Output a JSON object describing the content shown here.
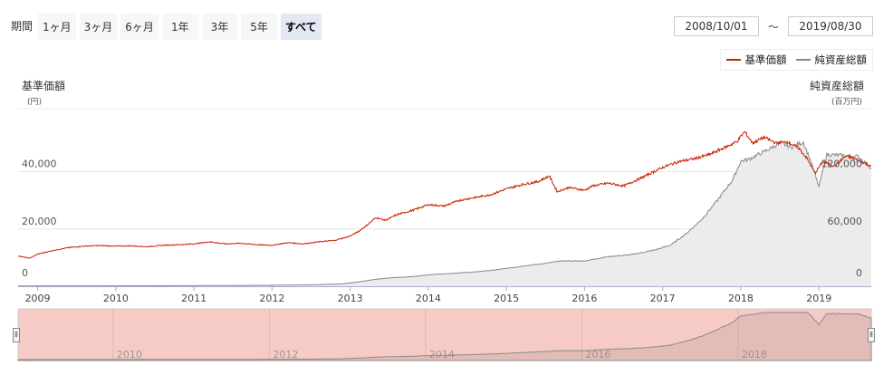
{
  "period": {
    "label": "期間",
    "buttons": [
      "1ヶ月",
      "3ヶ月",
      "6ヶ月",
      "1年",
      "3年",
      "5年",
      "すべて"
    ],
    "active_index": 6
  },
  "date_range": {
    "from": "2008/10/01",
    "separator": "～",
    "to": "2019/08/30"
  },
  "colors": {
    "nav_line": "#cc2200",
    "assets_line": "#888888",
    "assets_fill": "#ececec",
    "navigator_fill": "#f6cbc5"
  },
  "axes": {
    "left_title": "基準価額",
    "left_unit": "(円)",
    "right_title": "純資産総額",
    "right_unit": "(百万円)"
  },
  "chart_data": {
    "type": "line",
    "x_ticks": [
      "2009",
      "2010",
      "2011",
      "2012",
      "2013",
      "2014",
      "2015",
      "2016",
      "2017",
      "2018",
      "2019"
    ],
    "x_range": [
      2008.75,
      2019.67
    ],
    "y_left_ticks": [
      "0",
      "20,000",
      "40,000"
    ],
    "y_left_range": [
      0,
      62000
    ],
    "y_right_ticks": [
      "0",
      "60,000",
      "120,000"
    ],
    "y_right_range": [
      0,
      186000
    ],
    "grid": true,
    "legend": "top-right",
    "series": [
      {
        "name": "基準価額",
        "axis": "left",
        "x": [
          2008.75,
          2008.9,
          2009.0,
          2009.2,
          2009.4,
          2009.6,
          2009.8,
          2010.0,
          2010.2,
          2010.4,
          2010.6,
          2010.8,
          2011.0,
          2011.2,
          2011.4,
          2011.6,
          2011.8,
          2012.0,
          2012.2,
          2012.4,
          2012.6,
          2012.8,
          2013.0,
          2013.1,
          2013.2,
          2013.33,
          2013.45,
          2013.6,
          2013.8,
          2014.0,
          2014.2,
          2014.4,
          2014.6,
          2014.8,
          2015.0,
          2015.2,
          2015.4,
          2015.55,
          2015.65,
          2015.8,
          2016.0,
          2016.1,
          2016.3,
          2016.5,
          2016.7,
          2016.85,
          2017.0,
          2017.2,
          2017.4,
          2017.6,
          2017.8,
          2017.95,
          2018.05,
          2018.15,
          2018.3,
          2018.45,
          2018.6,
          2018.75,
          2018.85,
          2018.95,
          2019.05,
          2019.2,
          2019.35,
          2019.5,
          2019.67
        ],
        "values": [
          10500,
          9800,
          11200,
          12500,
          13500,
          14000,
          14200,
          14000,
          14100,
          13800,
          14300,
          14500,
          14800,
          15500,
          14800,
          15000,
          14500,
          14300,
          15200,
          14800,
          15500,
          16000,
          17500,
          19000,
          21000,
          24000,
          23000,
          25000,
          26500,
          28500,
          28000,
          30000,
          31000,
          32000,
          34000,
          35500,
          36500,
          38500,
          33000,
          34500,
          33500,
          35000,
          36000,
          35000,
          37500,
          39500,
          41500,
          43500,
          44500,
          46000,
          48500,
          50500,
          54000,
          50000,
          52000,
          50000,
          50500,
          48000,
          44500,
          39500,
          43500,
          42000,
          45500,
          44000,
          42000
        ]
      },
      {
        "name": "純資産総額",
        "axis": "right",
        "x": [
          2008.75,
          2009.0,
          2009.5,
          2010.0,
          2010.5,
          2011.0,
          2011.5,
          2012.0,
          2012.5,
          2012.9,
          2013.1,
          2013.35,
          2013.55,
          2013.8,
          2014.0,
          2014.3,
          2014.6,
          2014.9,
          2015.2,
          2015.5,
          2015.7,
          2016.0,
          2016.3,
          2016.6,
          2016.9,
          2017.1,
          2017.3,
          2017.5,
          2017.7,
          2017.9,
          2018.0,
          2018.1,
          2018.3,
          2018.5,
          2018.65,
          2018.8,
          2018.9,
          2019.0,
          2019.1,
          2019.3,
          2019.5,
          2019.67
        ],
        "values": [
          100,
          150,
          250,
          350,
          450,
          600,
          800,
          1000,
          1500,
          2500,
          4500,
          7500,
          9000,
          10000,
          12000,
          13500,
          15000,
          17500,
          21000,
          24000,
          26500,
          26500,
          31000,
          33000,
          38000,
          43000,
          55000,
          70000,
          90000,
          112000,
          131000,
          133000,
          141000,
          150000,
          146000,
          151000,
          130000,
          104000,
          138000,
          137000,
          136000,
          124000
        ]
      }
    ]
  },
  "navigator": {
    "labels": [
      "2010",
      "2012",
      "2014",
      "2016",
      "2018"
    ],
    "label_years": [
      2010,
      2012,
      2014,
      2016,
      2018
    ]
  }
}
